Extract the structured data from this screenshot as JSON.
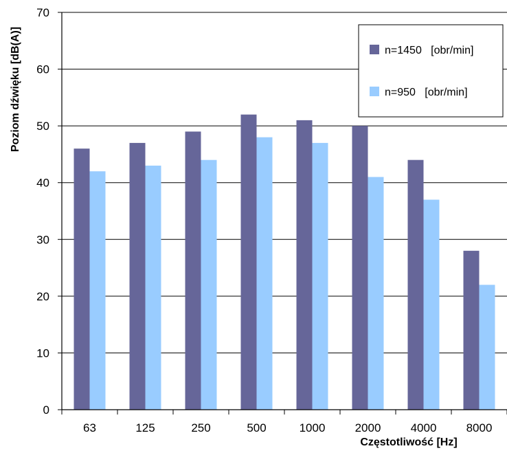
{
  "chart_data": {
    "type": "bar",
    "categories": [
      "63",
      "125",
      "250",
      "500",
      "1000",
      "2000",
      "4000",
      "8000"
    ],
    "series": [
      {
        "name": "n=1450   [obr/min]",
        "values": [
          46,
          47,
          49,
          52,
          51,
          50,
          44,
          28
        ],
        "color": "#666699"
      },
      {
        "name": "n=950   [obr/min]",
        "values": [
          42,
          43,
          44,
          48,
          47,
          41,
          37,
          22
        ],
        "color": "#99ccff"
      }
    ],
    "xlabel": "Częstotliwość   [Hz]",
    "ylabel": "Poziom dźwięku [dB(A)]",
    "ylim": [
      0,
      70
    ],
    "yticks": [
      0,
      10,
      20,
      30,
      40,
      50,
      60,
      70
    ],
    "grid": true,
    "legend_position": "top-right"
  }
}
